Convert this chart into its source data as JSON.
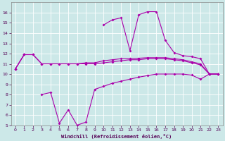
{
  "background_color": "#cce8e8",
  "grid_color": "#b8dada",
  "line_color": "#aa00aa",
  "xlabel": "Windchill (Refroidissement éolien,°C)",
  "ylim": [
    5,
    17
  ],
  "xlim_min": -0.5,
  "xlim_max": 23.5,
  "yticks": [
    5,
    6,
    7,
    8,
    9,
    10,
    11,
    12,
    13,
    14,
    15,
    16
  ],
  "xticks": [
    0,
    1,
    2,
    3,
    4,
    5,
    6,
    7,
    8,
    9,
    10,
    11,
    12,
    13,
    14,
    15,
    16,
    17,
    18,
    19,
    20,
    21,
    22,
    23
  ],
  "line_top": [
    10.5,
    11.9,
    null,
    null,
    null,
    null,
    null,
    null,
    null,
    null,
    14.8,
    15.3,
    15.5,
    12.3,
    15.8,
    16.1,
    16.1,
    13.3,
    12.1,
    11.8,
    11.7,
    11.5,
    10.0,
    10.0
  ],
  "line_mid1": [
    10.5,
    11.9,
    11.9,
    11.0,
    11.0,
    11.0,
    11.0,
    11.0,
    11.1,
    11.1,
    11.3,
    11.4,
    11.5,
    11.5,
    11.55,
    11.6,
    11.6,
    11.6,
    11.5,
    11.4,
    11.2,
    11.0,
    10.0,
    10.0
  ],
  "line_mid2": [
    10.5,
    11.9,
    11.9,
    11.0,
    11.0,
    11.0,
    11.0,
    11.0,
    11.0,
    11.0,
    11.1,
    11.2,
    11.3,
    11.4,
    11.4,
    11.5,
    11.5,
    11.5,
    11.4,
    11.3,
    11.1,
    10.9,
    10.0,
    10.0
  ],
  "line_bot": [
    null,
    null,
    null,
    8.0,
    8.2,
    5.2,
    6.5,
    5.0,
    5.3,
    8.5,
    8.8,
    9.1,
    9.3,
    9.5,
    9.7,
    9.85,
    10.0,
    10.0,
    10.0,
    10.0,
    9.9,
    9.5,
    10.0,
    10.0
  ]
}
